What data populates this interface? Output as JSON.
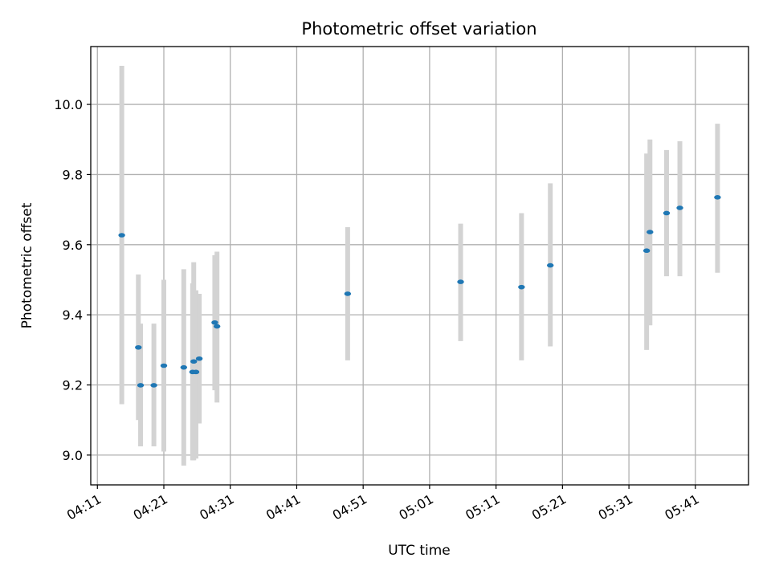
{
  "chart_data": {
    "type": "scatter",
    "title": "Photometric offset variation",
    "xlabel": "UTC time",
    "ylabel": "Photometric offset",
    "x_ticks": [
      "04:11",
      "04:21",
      "04:31",
      "04:41",
      "04:51",
      "05:01",
      "05:11",
      "05:21",
      "05:31",
      "05:41"
    ],
    "y_ticks": [
      "9.0",
      "9.2",
      "9.4",
      "9.6",
      "9.8",
      "10.0"
    ],
    "xlim": [
      "04:10",
      "05:49"
    ],
    "ylim": [
      8.915,
      10.165
    ],
    "grid": true,
    "marker_color": "#1f77b4",
    "errorbar_color": "#d3d3d3",
    "points": [
      {
        "x": "04:14:40",
        "y": 9.627,
        "yerr_low": 9.145,
        "yerr_high": 10.11
      },
      {
        "x": "04:17:10",
        "y": 9.307,
        "yerr_low": 9.1,
        "yerr_high": 9.515
      },
      {
        "x": "04:17:30",
        "y": 9.199,
        "yerr_low": 9.025,
        "yerr_high": 9.375
      },
      {
        "x": "04:19:30",
        "y": 9.199,
        "yerr_low": 9.025,
        "yerr_high": 9.375
      },
      {
        "x": "04:21:00",
        "y": 9.255,
        "yerr_low": 9.01,
        "yerr_high": 9.5
      },
      {
        "x": "04:24:00",
        "y": 9.25,
        "yerr_low": 8.97,
        "yerr_high": 9.53
      },
      {
        "x": "04:25:20",
        "y": 9.237,
        "yerr_low": 8.985,
        "yerr_high": 9.49
      },
      {
        "x": "04:25:30",
        "y": 9.267,
        "yerr_low": 8.985,
        "yerr_high": 9.55
      },
      {
        "x": "04:25:50",
        "y": 9.237,
        "yerr_low": 8.99,
        "yerr_high": 9.47
      },
      {
        "x": "04:26:20",
        "y": 9.275,
        "yerr_low": 9.09,
        "yerr_high": 9.46
      },
      {
        "x": "04:28:40",
        "y": 9.378,
        "yerr_low": 9.185,
        "yerr_high": 9.57
      },
      {
        "x": "04:29:00",
        "y": 9.367,
        "yerr_low": 9.15,
        "yerr_high": 9.58
      },
      {
        "x": "04:48:40",
        "y": 9.46,
        "yerr_low": 9.27,
        "yerr_high": 9.65
      },
      {
        "x": "05:05:40",
        "y": 9.494,
        "yerr_low": 9.325,
        "yerr_high": 9.66
      },
      {
        "x": "05:14:50",
        "y": 9.479,
        "yerr_low": 9.27,
        "yerr_high": 9.69
      },
      {
        "x": "05:19:10",
        "y": 9.541,
        "yerr_low": 9.31,
        "yerr_high": 9.775
      },
      {
        "x": "05:33:40",
        "y": 9.583,
        "yerr_low": 9.3,
        "yerr_high": 9.86
      },
      {
        "x": "05:34:10",
        "y": 9.636,
        "yerr_low": 9.37,
        "yerr_high": 9.9
      },
      {
        "x": "05:36:40",
        "y": 9.69,
        "yerr_low": 9.51,
        "yerr_high": 9.87
      },
      {
        "x": "05:38:40",
        "y": 9.705,
        "yerr_low": 9.51,
        "yerr_high": 9.895
      },
      {
        "x": "05:44:20",
        "y": 9.735,
        "yerr_low": 9.52,
        "yerr_high": 9.945
      }
    ]
  }
}
